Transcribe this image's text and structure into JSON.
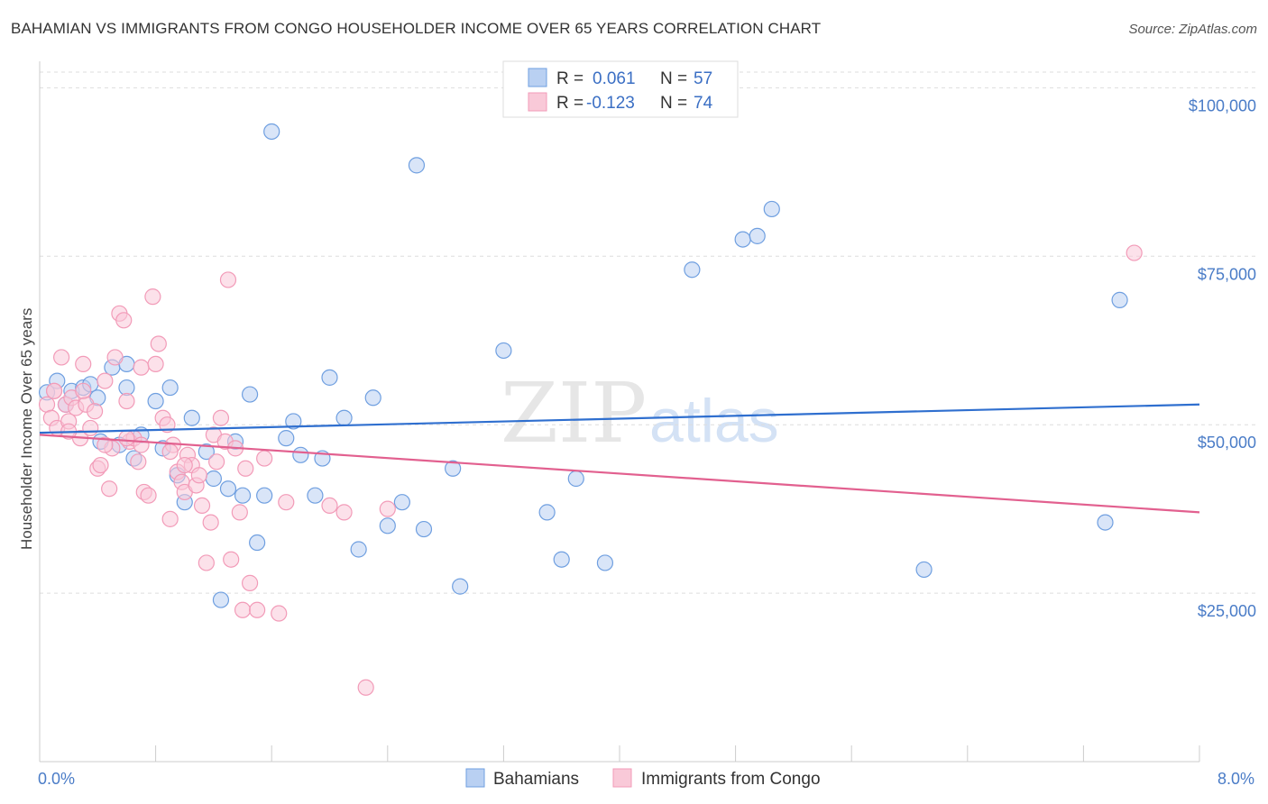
{
  "header": {
    "title": "BAHAMIAN VS IMMIGRANTS FROM CONGO HOUSEHOLDER INCOME OVER 65 YEARS CORRELATION CHART",
    "source": "Source: ZipAtlas.com"
  },
  "watermark": {
    "zip": "ZIP",
    "atlas": "atlas"
  },
  "chart_data": {
    "type": "scatter",
    "title": "BAHAMIAN VS IMMIGRANTS FROM CONGO HOUSEHOLDER INCOME OVER 65 YEARS CORRELATION CHART",
    "xlabel": "",
    "ylabel": "Householder Income Over 65 years",
    "xlim": [
      0,
      8.0
    ],
    "ylim": [
      0,
      105000
    ],
    "x_tick_labels": [
      "0.0%",
      "8.0%"
    ],
    "y_ticks": [
      {
        "value": 25000,
        "label": "$25,000"
      },
      {
        "value": 50000,
        "label": "$50,000"
      },
      {
        "value": 75000,
        "label": "$75,000"
      },
      {
        "value": 100000,
        "label": "$100,000"
      }
    ],
    "grid": "horizontal dashed",
    "legend_top": [
      {
        "r_label": "R =",
        "r_value": "0.061",
        "n_label": "N =",
        "n_value": "57",
        "color": "#6f9fe0"
      },
      {
        "r_label": "R =",
        "r_value": "-0.123",
        "n_label": "N =",
        "n_value": "74",
        "color": "#f29bb8"
      }
    ],
    "legend_bottom": [
      "Bahamians",
      "Immigrants from Congo"
    ],
    "series": [
      {
        "name": "Bahamians",
        "color": "#6f9fe0",
        "fill": "#b9d0f2",
        "trend": {
          "x": [
            0,
            8.0
          ],
          "y": [
            48800,
            53000
          ],
          "color": "#2f6fcf"
        },
        "points": [
          [
            0.05,
            54800
          ],
          [
            0.12,
            56500
          ],
          [
            0.18,
            53000
          ],
          [
            0.22,
            55000
          ],
          [
            0.3,
            55500
          ],
          [
            0.35,
            56000
          ],
          [
            0.4,
            54000
          ],
          [
            0.42,
            47500
          ],
          [
            0.5,
            58500
          ],
          [
            0.6,
            55500
          ],
          [
            0.65,
            45000
          ],
          [
            0.7,
            48500
          ],
          [
            0.8,
            53500
          ],
          [
            0.85,
            46500
          ],
          [
            0.9,
            55500
          ],
          [
            0.95,
            42500
          ],
          [
            1.0,
            38500
          ],
          [
            1.05,
            51000
          ],
          [
            1.15,
            46000
          ],
          [
            1.2,
            42000
          ],
          [
            1.3,
            40500
          ],
          [
            1.35,
            47500
          ],
          [
            1.4,
            39500
          ],
          [
            1.45,
            54500
          ],
          [
            1.5,
            32500
          ],
          [
            1.55,
            39500
          ],
          [
            1.6,
            93500
          ],
          [
            1.7,
            48000
          ],
          [
            1.75,
            50500
          ],
          [
            1.8,
            45500
          ],
          [
            1.9,
            39500
          ],
          [
            1.95,
            45000
          ],
          [
            2.0,
            57000
          ],
          [
            2.1,
            51000
          ],
          [
            2.2,
            31500
          ],
          [
            2.3,
            54000
          ],
          [
            2.4,
            35000
          ],
          [
            2.5,
            38500
          ],
          [
            2.6,
            88500
          ],
          [
            2.65,
            34500
          ],
          [
            2.85,
            43500
          ],
          [
            2.9,
            26000
          ],
          [
            3.2,
            61000
          ],
          [
            3.5,
            37000
          ],
          [
            3.6,
            30000
          ],
          [
            3.7,
            42000
          ],
          [
            3.9,
            29500
          ],
          [
            4.5,
            73000
          ],
          [
            4.85,
            77500
          ],
          [
            4.95,
            78000
          ],
          [
            5.05,
            82000
          ],
          [
            6.1,
            28500
          ],
          [
            7.35,
            35500
          ],
          [
            7.45,
            68500
          ],
          [
            1.25,
            24000
          ],
          [
            0.6,
            59000
          ],
          [
            0.55,
            47000
          ]
        ]
      },
      {
        "name": "Immigrants from Congo",
        "color": "#f29bb8",
        "fill": "#f9c9d8",
        "trend": {
          "x": [
            0,
            8.0
          ],
          "y": [
            48500,
            37000
          ],
          "color": "#e2608f"
        },
        "points": [
          [
            0.05,
            53000
          ],
          [
            0.08,
            51000
          ],
          [
            0.1,
            55000
          ],
          [
            0.12,
            49500
          ],
          [
            0.15,
            60000
          ],
          [
            0.18,
            53000
          ],
          [
            0.2,
            50500
          ],
          [
            0.22,
            54000
          ],
          [
            0.25,
            52500
          ],
          [
            0.28,
            48000
          ],
          [
            0.3,
            59000
          ],
          [
            0.32,
            53000
          ],
          [
            0.35,
            49500
          ],
          [
            0.38,
            52000
          ],
          [
            0.4,
            43500
          ],
          [
            0.42,
            44000
          ],
          [
            0.45,
            56500
          ],
          [
            0.48,
            40500
          ],
          [
            0.5,
            46500
          ],
          [
            0.52,
            60000
          ],
          [
            0.55,
            66500
          ],
          [
            0.58,
            65500
          ],
          [
            0.6,
            53500
          ],
          [
            0.62,
            47500
          ],
          [
            0.65,
            48000
          ],
          [
            0.68,
            44500
          ],
          [
            0.7,
            58500
          ],
          [
            0.72,
            40000
          ],
          [
            0.75,
            39500
          ],
          [
            0.78,
            69000
          ],
          [
            0.8,
            59000
          ],
          [
            0.82,
            62000
          ],
          [
            0.85,
            51000
          ],
          [
            0.88,
            50000
          ],
          [
            0.9,
            36000
          ],
          [
            0.92,
            47000
          ],
          [
            0.95,
            43000
          ],
          [
            0.98,
            41500
          ],
          [
            1.0,
            40000
          ],
          [
            1.02,
            45500
          ],
          [
            1.05,
            44000
          ],
          [
            1.08,
            41000
          ],
          [
            1.1,
            42500
          ],
          [
            1.12,
            38000
          ],
          [
            1.15,
            29500
          ],
          [
            1.18,
            35500
          ],
          [
            1.2,
            48500
          ],
          [
            1.22,
            44500
          ],
          [
            1.25,
            51000
          ],
          [
            1.28,
            47500
          ],
          [
            1.3,
            71500
          ],
          [
            1.32,
            30000
          ],
          [
            1.35,
            46500
          ],
          [
            1.38,
            37000
          ],
          [
            1.4,
            22500
          ],
          [
            1.42,
            43500
          ],
          [
            1.45,
            26500
          ],
          [
            1.5,
            22500
          ],
          [
            1.55,
            45000
          ],
          [
            1.65,
            22000
          ],
          [
            1.7,
            38500
          ],
          [
            2.0,
            38000
          ],
          [
            2.1,
            37000
          ],
          [
            2.25,
            11000
          ],
          [
            2.4,
            37500
          ],
          [
            7.55,
            75500
          ],
          [
            0.1,
            55000
          ],
          [
            0.3,
            55000
          ],
          [
            0.45,
            47000
          ],
          [
            0.6,
            48000
          ],
          [
            0.9,
            46000
          ],
          [
            1.0,
            44000
          ],
          [
            0.7,
            47000
          ],
          [
            0.2,
            49000
          ]
        ]
      }
    ]
  }
}
